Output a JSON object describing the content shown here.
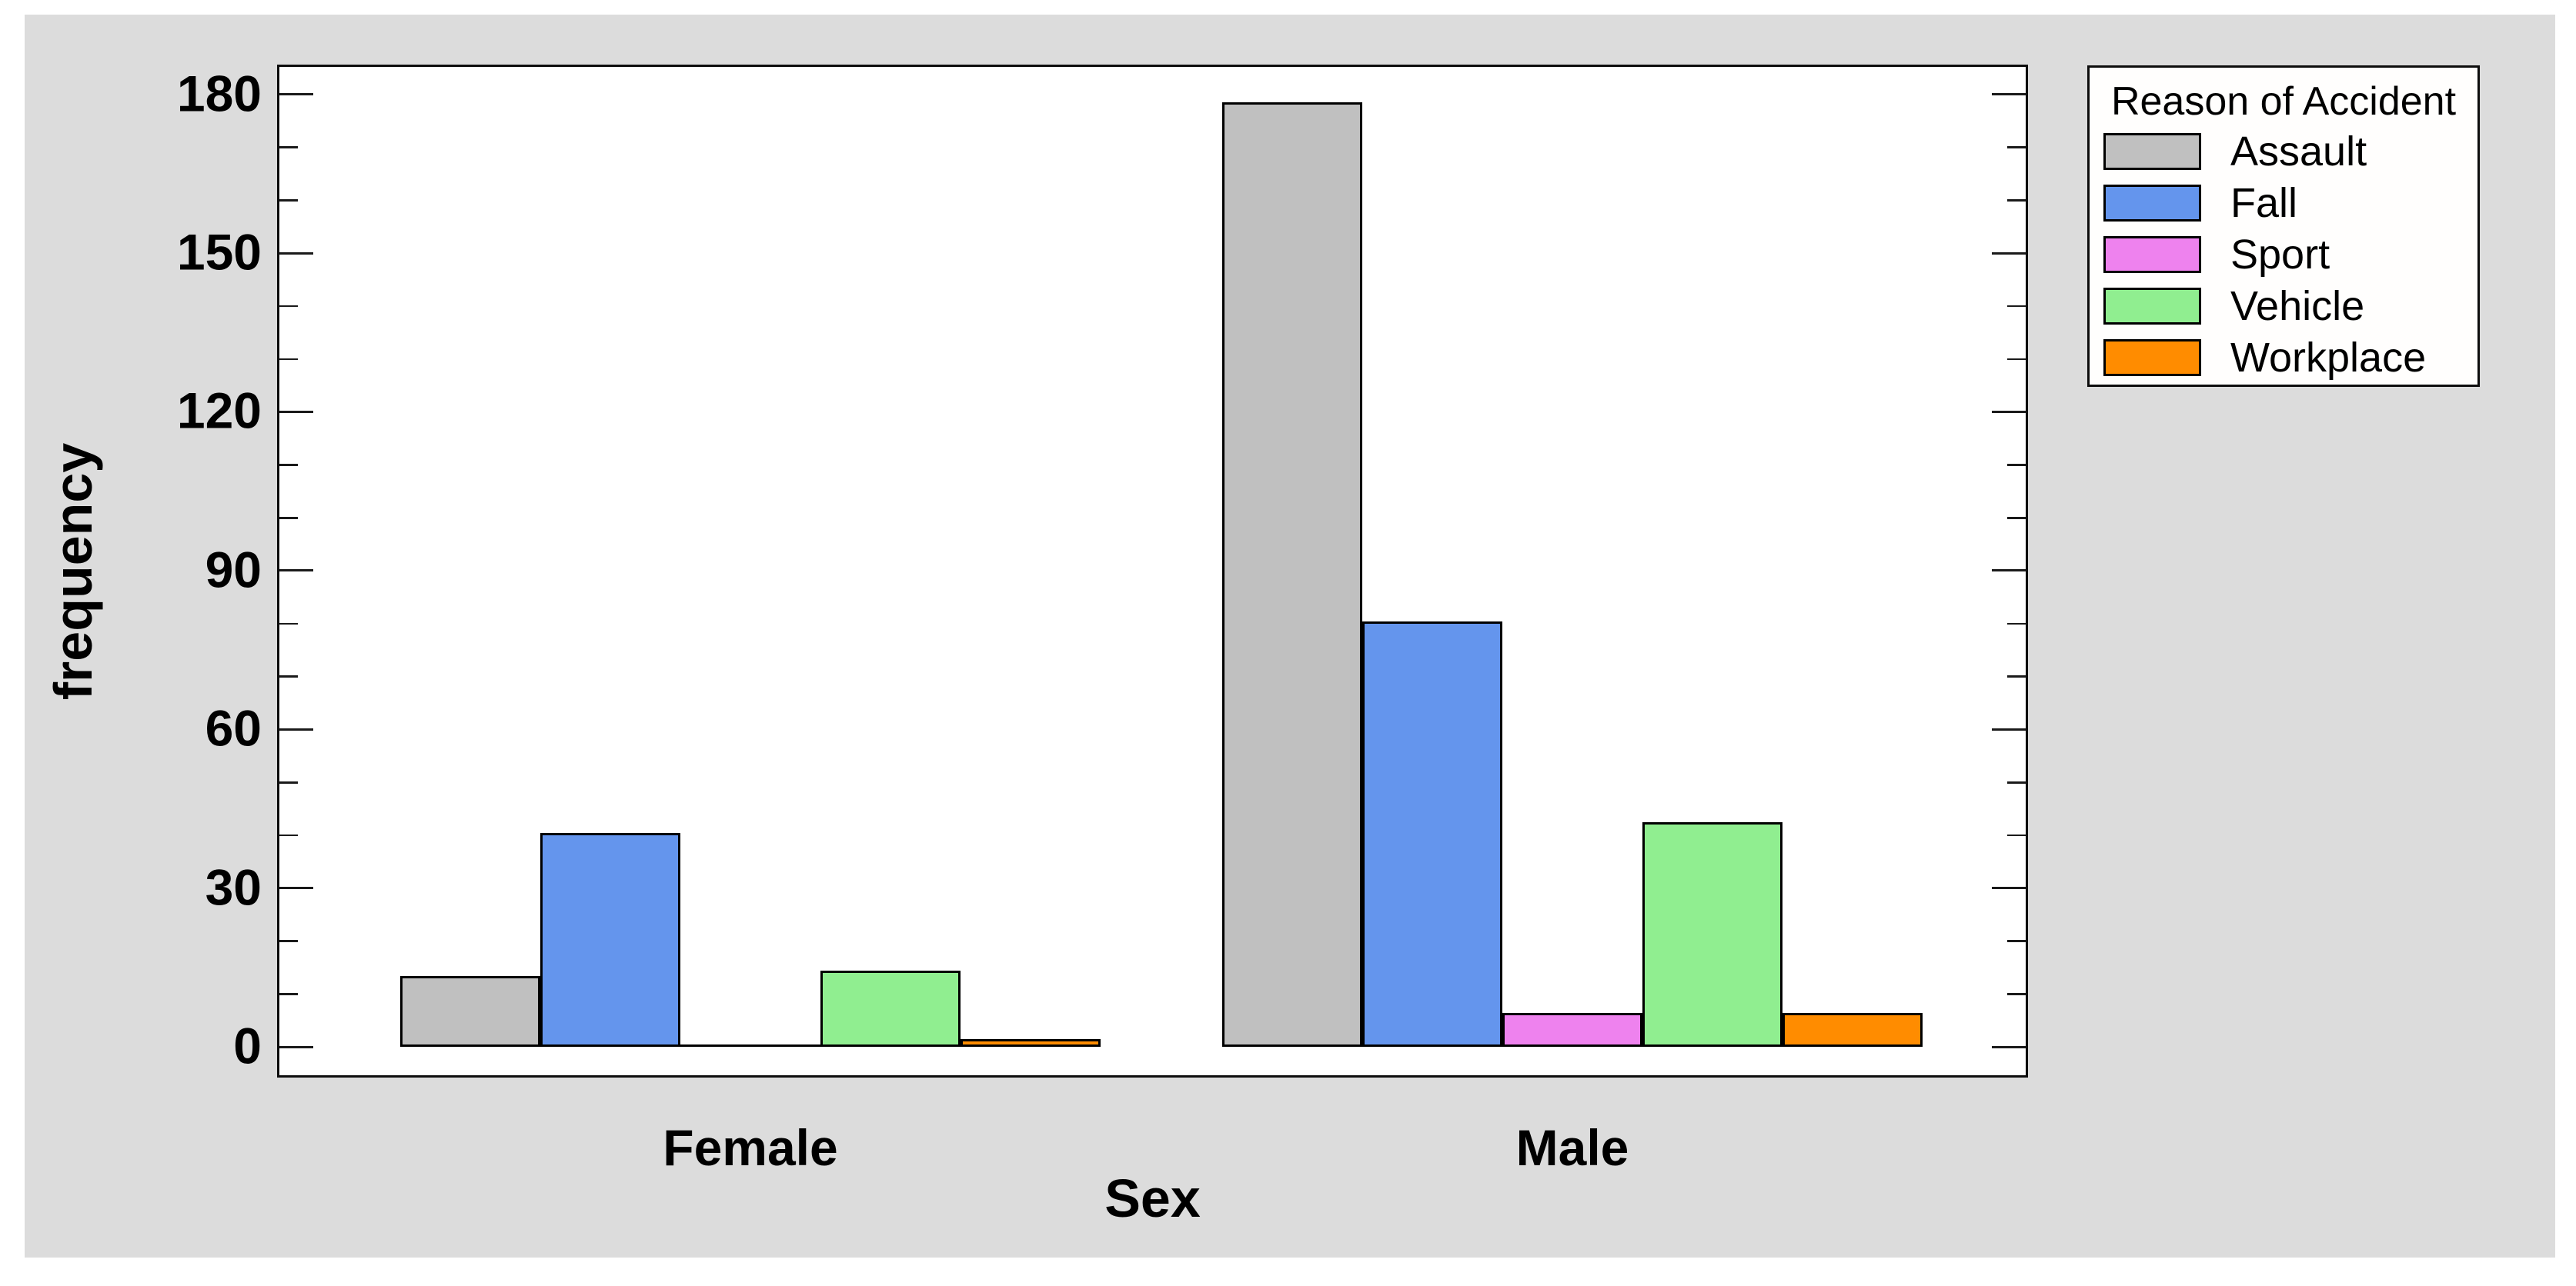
{
  "figure": {
    "background": "#FFFFFF",
    "canvas_color": "#DCDCDC",
    "plot_background": "#FFFFFF",
    "frame_color": "#000000"
  },
  "chart_data": {
    "type": "bar",
    "categories": [
      "Female",
      "Male"
    ],
    "series": [
      {
        "name": "Assault",
        "color": "#C0C0C0",
        "values": [
          13,
          178
        ]
      },
      {
        "name": "Fall",
        "color": "#6495ED",
        "values": [
          40,
          80
        ]
      },
      {
        "name": "Sport",
        "color": "#EE82EE",
        "values": [
          0,
          6
        ]
      },
      {
        "name": "Vehicle",
        "color": "#90EE90",
        "values": [
          14,
          42
        ]
      },
      {
        "name": "Workplace",
        "color": "#FF8C00",
        "values": [
          1,
          6
        ]
      }
    ],
    "xlabel": "Sex",
    "ylabel": "frequency",
    "ylim": [
      -5,
      185
    ],
    "yticks_major": [
      0,
      30,
      60,
      90,
      120,
      150,
      180
    ],
    "ytick_minor_step": 10,
    "grid": false,
    "legend_title": "Reason of Accident",
    "legend_position": "outside-top-right",
    "bar_border_color": "#000000"
  },
  "legend": {
    "title": "Reason of Accident",
    "entries": [
      {
        "label": "Assault",
        "color": "#C0C0C0"
      },
      {
        "label": "Fall",
        "color": "#6495ED"
      },
      {
        "label": "Sport",
        "color": "#EE82EE"
      },
      {
        "label": "Vehicle",
        "color": "#90EE90"
      },
      {
        "label": "Workplace",
        "color": "#FF8C00"
      }
    ]
  },
  "axes": {
    "x_title": "Sex",
    "y_title": "frequency",
    "y_tick_labels": [
      "0",
      "30",
      "60",
      "90",
      "120",
      "150",
      "180"
    ]
  }
}
